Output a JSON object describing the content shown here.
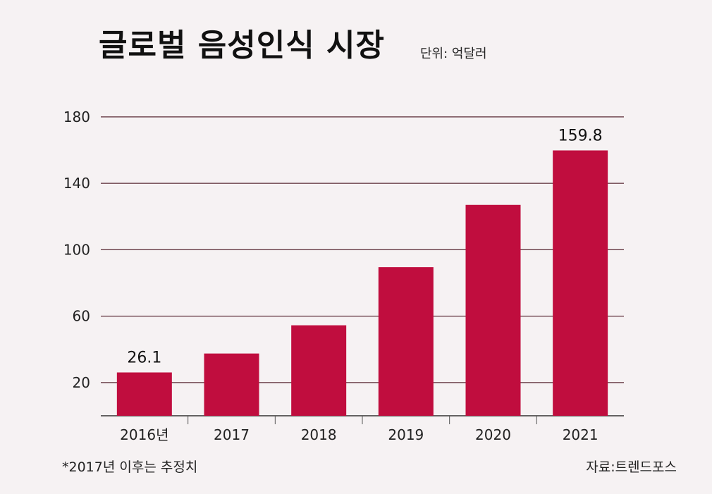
{
  "header": {
    "title": "글로벌 음성인식 시장",
    "unit": "단위: 억달러"
  },
  "footer": {
    "note": "*2017년 이후는 추정치",
    "source": "자료:트렌드포스"
  },
  "colors": {
    "bar": "#c00d3e",
    "grid": "#5a2a35",
    "background": "#f6f2f3"
  },
  "chart_data": {
    "type": "bar",
    "title": "글로벌 음성인식 시장",
    "xlabel": "",
    "ylabel": "단위: 억달러",
    "categories": [
      "2016년",
      "2017",
      "2018",
      "2019",
      "2020",
      "2021"
    ],
    "values": [
      26.1,
      37.5,
      54.5,
      89.5,
      127.0,
      159.8
    ],
    "data_labels": [
      "26.1",
      "",
      "",
      "",
      "",
      "159.8"
    ],
    "yticks": [
      20,
      60,
      100,
      140,
      180
    ],
    "ylim": [
      0,
      180
    ],
    "grid": true
  }
}
